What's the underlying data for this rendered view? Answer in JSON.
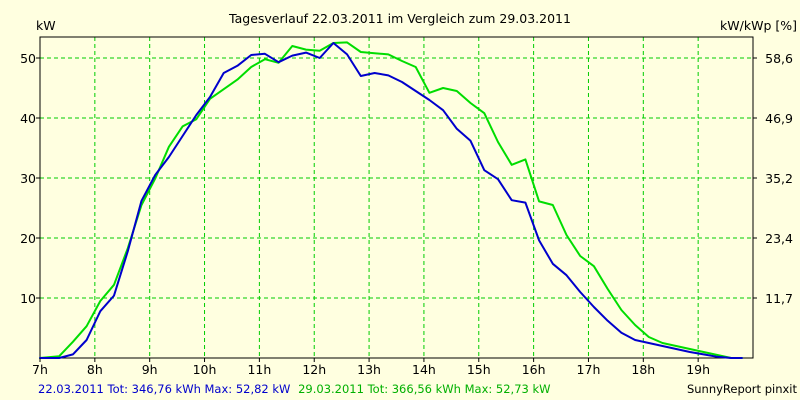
{
  "chart_data": {
    "type": "line",
    "title": "Tagesverlauf 22.03.2011 im Vergleich zum 29.03.2011",
    "ylabel": "kW",
    "ylabel_right": "kW/kWp [%]",
    "xlim": [
      7.0,
      20.0
    ],
    "ylim": [
      0,
      53.5
    ],
    "x_ticks": [
      7,
      8,
      9,
      10,
      11,
      12,
      13,
      14,
      15,
      16,
      17,
      18,
      19
    ],
    "x_tick_labels": [
      "7h",
      "8h",
      "9h",
      "10h",
      "11h",
      "12h",
      "13h",
      "14h",
      "15h",
      "16h",
      "17h",
      "18h",
      "19h"
    ],
    "y_ticks": [
      10,
      20,
      30,
      40,
      50
    ],
    "y_tick_labels": [
      "10",
      "20",
      "30",
      "40",
      "50"
    ],
    "y_right_ticks": [
      10,
      20,
      30,
      40,
      50
    ],
    "y_right_tick_labels": [
      "11,7",
      "23,4",
      "35,2",
      "46,9",
      "58,6"
    ],
    "grid": true,
    "series": [
      {
        "name": "22.03.2011",
        "color": "#0000cc",
        "x": [
          7.0,
          7.35,
          7.6,
          7.85,
          8.1,
          8.35,
          8.6,
          8.85,
          9.1,
          9.35,
          9.6,
          9.85,
          10.1,
          10.35,
          10.6,
          10.85,
          11.1,
          11.35,
          11.6,
          11.85,
          12.1,
          12.35,
          12.6,
          12.85,
          13.1,
          13.35,
          13.6,
          13.85,
          14.1,
          14.35,
          14.6,
          14.85,
          15.1,
          15.35,
          15.6,
          15.85,
          16.1,
          16.35,
          16.6,
          16.85,
          17.1,
          17.35,
          17.6,
          17.85,
          18.1,
          18.35,
          18.6,
          18.85,
          19.1,
          19.35,
          19.6,
          19.8
        ],
        "values": [
          0,
          0,
          0.6,
          3,
          7.8,
          10.4,
          17.8,
          26.2,
          30.5,
          33.5,
          37,
          40.5,
          43.5,
          47.5,
          48.7,
          50.5,
          50.7,
          49.3,
          50.4,
          50.9,
          50,
          52.5,
          50.6,
          47,
          47.5,
          47.1,
          46,
          44.5,
          43,
          41.3,
          38.2,
          36.2,
          31.3,
          29.8,
          26.3,
          25.9,
          19.6,
          15.7,
          13.8,
          11,
          8.5,
          6.2,
          4.2,
          3,
          2.5,
          2,
          1.5,
          1,
          0.6,
          0.2,
          0,
          0
        ]
      },
      {
        "name": "29.03.2011",
        "color": "#00dd00",
        "x": [
          7.0,
          7.35,
          7.6,
          7.85,
          8.1,
          8.35,
          8.6,
          8.85,
          9.1,
          9.35,
          9.6,
          9.85,
          10.1,
          10.35,
          10.6,
          10.85,
          11.1,
          11.35,
          11.6,
          11.85,
          12.1,
          12.35,
          12.6,
          12.85,
          13.1,
          13.35,
          13.6,
          13.85,
          14.1,
          14.35,
          14.6,
          14.85,
          15.1,
          15.35,
          15.6,
          15.85,
          16.1,
          16.35,
          16.6,
          16.85,
          17.1,
          17.35,
          17.6,
          17.85,
          18.1,
          18.35,
          18.6,
          18.85,
          19.1,
          19.35,
          19.6,
          19.8
        ],
        "values": [
          0,
          0.3,
          2.7,
          5.3,
          9.5,
          12.2,
          18.3,
          25.5,
          29.9,
          35.2,
          38.6,
          39.8,
          43.2,
          44.8,
          46.4,
          48.5,
          49.8,
          49.2,
          52,
          51.4,
          51.2,
          52.5,
          52.6,
          51,
          50.8,
          50.6,
          49.5,
          48.5,
          44.2,
          45,
          44.5,
          42.5,
          40.8,
          36,
          32.2,
          33.1,
          26.1,
          25.5,
          20.5,
          17,
          15.3,
          11.5,
          8,
          5.5,
          3.5,
          2.5,
          2,
          1.5,
          1,
          0.5,
          0,
          0
        ]
      }
    ]
  },
  "footer": {
    "legend_1": "22.03.2011 Tot: 346,76 kWh Max: 52,82 kW",
    "legend_2": "29.03.2011 Tot: 366,56 kWh Max: 52,73 kW",
    "credit": "SunnyReport pinxit"
  }
}
